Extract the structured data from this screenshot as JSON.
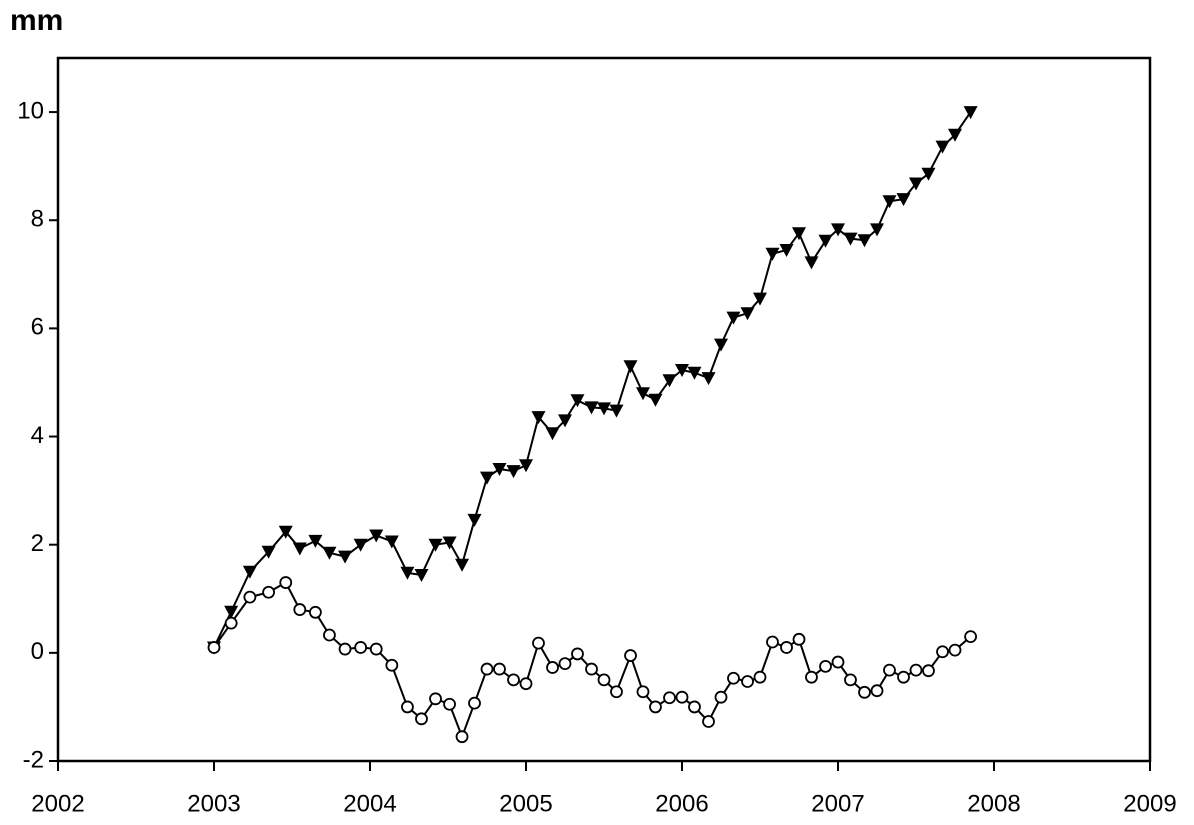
{
  "chart_data": {
    "type": "line",
    "y_label": "mm",
    "x": [
      2003.0,
      2003.11,
      2003.23,
      2003.35,
      2003.46,
      2003.55,
      2003.65,
      2003.74,
      2003.84,
      2003.94,
      2004.04,
      2004.14,
      2004.24,
      2004.33,
      2004.42,
      2004.51,
      2004.59,
      2004.67,
      2004.75,
      2004.83,
      2004.92,
      2005.0,
      2005.08,
      2005.17,
      2005.25,
      2005.33,
      2005.42,
      2005.5,
      2005.58,
      2005.67,
      2005.75,
      2005.83,
      2005.92,
      2006.0,
      2006.08,
      2006.17,
      2006.25,
      2006.33,
      2006.42,
      2006.5,
      2006.58,
      2006.67,
      2006.75,
      2006.83,
      2006.92,
      2007.0,
      2007.08,
      2007.17,
      2007.25,
      2007.33,
      2007.42,
      2007.5,
      2007.58,
      2007.67,
      2007.75,
      2007.85
    ],
    "series": [
      {
        "color": "#000000",
        "marker": "triangle-down",
        "values": [
          0.1,
          0.76,
          1.5,
          1.87,
          2.24,
          1.93,
          2.07,
          1.85,
          1.78,
          2.0,
          2.17,
          2.06,
          1.48,
          1.44,
          2.0,
          2.04,
          1.63,
          2.46,
          3.24,
          3.4,
          3.36,
          3.47,
          4.36,
          4.06,
          4.3,
          4.67,
          4.54,
          4.52,
          4.48,
          5.3,
          4.8,
          4.68,
          5.04,
          5.23,
          5.18,
          5.08,
          5.7,
          6.2,
          6.28,
          6.55,
          7.38,
          7.45,
          7.76,
          7.22,
          7.62,
          7.83,
          7.66,
          7.63,
          7.83,
          8.35,
          8.39,
          8.68,
          8.86,
          9.36,
          9.58,
          10.0
        ]
      },
      {
        "color": "#000000",
        "marker": "circle-open",
        "values": [
          0.1,
          0.55,
          1.03,
          1.12,
          1.3,
          0.8,
          0.75,
          0.33,
          0.07,
          0.1,
          0.07,
          -0.23,
          -1.0,
          -1.22,
          -0.85,
          -0.95,
          -1.55,
          -0.93,
          -0.3,
          -0.3,
          -0.5,
          -0.57,
          0.18,
          -0.27,
          -0.2,
          -0.02,
          -0.3,
          -0.5,
          -0.72,
          -0.05,
          -0.72,
          -1.0,
          -0.83,
          -0.82,
          -1.0,
          -1.27,
          -0.82,
          -0.47,
          -0.53,
          -0.45,
          0.2,
          0.1,
          0.25,
          -0.45,
          -0.25,
          -0.17,
          -0.5,
          -0.73,
          -0.7,
          -0.32,
          -0.45,
          -0.32,
          -0.33,
          0.02,
          0.05,
          0.3
        ]
      }
    ],
    "xlim": [
      2002,
      2009
    ],
    "xticks": [
      2002,
      2003,
      2004,
      2005,
      2006,
      2007,
      2008,
      2009
    ],
    "ylim": [
      -2,
      11
    ],
    "yticks": [
      -2,
      0,
      2,
      4,
      6,
      8,
      10
    ],
    "grid": false
  }
}
